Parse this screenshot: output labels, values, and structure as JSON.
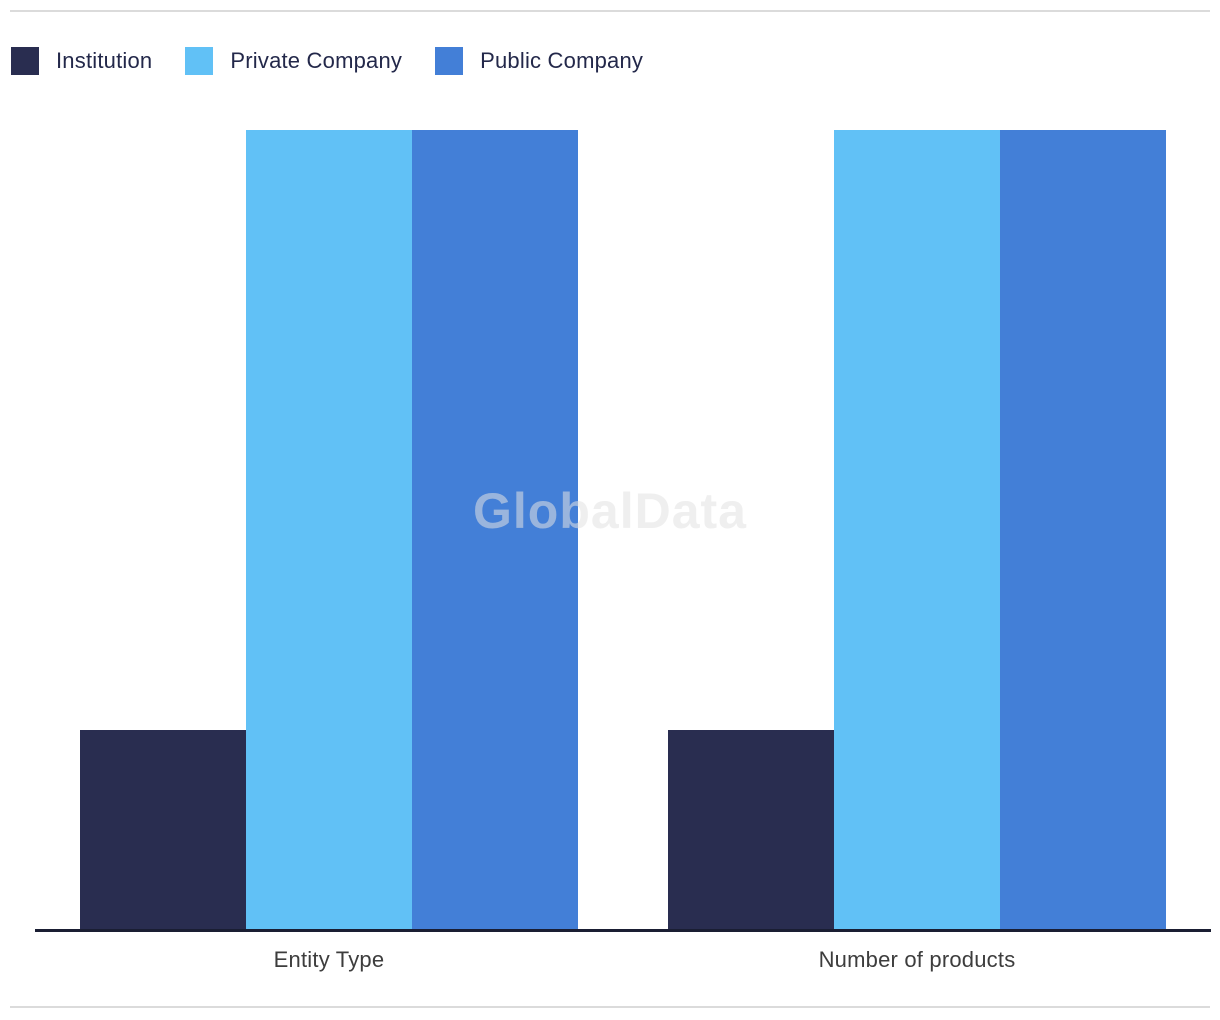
{
  "chart_data": {
    "type": "bar",
    "title": "",
    "categories": [
      "Entity Type",
      "Number of products"
    ],
    "series": [
      {
        "name": "Institution",
        "color": "#292D50",
        "values": [
          1,
          1
        ]
      },
      {
        "name": "Private Company",
        "color": "#61C1F6",
        "values": [
          4,
          4
        ]
      },
      {
        "name": "Public Company",
        "color": "#437FD7",
        "values": [
          4,
          4
        ]
      }
    ],
    "ylim": [
      0,
      4
    ],
    "xlabel": "",
    "ylabel": "",
    "grid": false,
    "y_axis_shown": false,
    "legend_position": "top-left",
    "watermark": "GlobalData",
    "axis_color": "#1A1E33",
    "category_label_color": "#3D3D3D"
  }
}
